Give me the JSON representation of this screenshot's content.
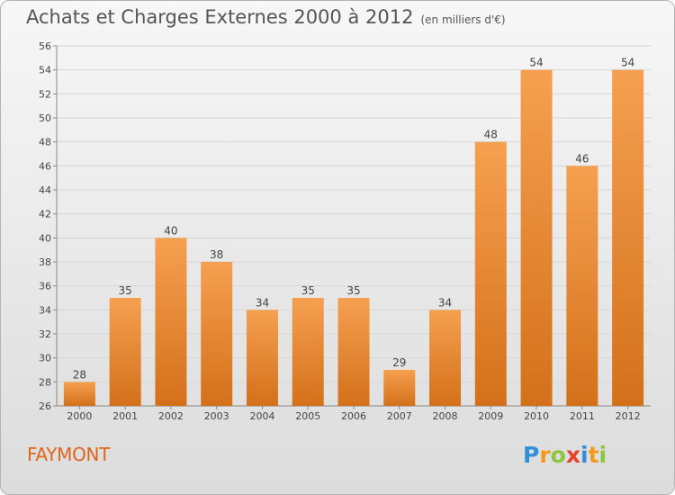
{
  "header": {
    "title": "Achats et Charges Externes 2000 à 2012",
    "subtitle": "(en milliers d'€)"
  },
  "commune": "FAYMONT",
  "logo": {
    "letters": [
      {
        "char": "P",
        "color": "#2f8fd8"
      },
      {
        "char": "r",
        "color": "#f39a1e"
      },
      {
        "char": "o",
        "color": "#8cc63f"
      },
      {
        "char": "x",
        "color": "#e8412c"
      },
      {
        "char": "i",
        "color": "#2f8fd8"
      },
      {
        "char": "t",
        "color": "#f39a1e"
      },
      {
        "char": "i",
        "color": "#8cc63f"
      }
    ]
  },
  "chart_data": {
    "type": "bar",
    "categories": [
      "2000",
      "2001",
      "2002",
      "2003",
      "2004",
      "2005",
      "2006",
      "2007",
      "2008",
      "2009",
      "2010",
      "2011",
      "2012"
    ],
    "values": [
      28,
      35,
      40,
      38,
      34,
      35,
      35,
      29,
      34,
      48,
      54,
      46,
      54
    ],
    "ylim": [
      26,
      56
    ],
    "yticks": [
      26,
      28,
      30,
      32,
      34,
      36,
      38,
      40,
      42,
      44,
      46,
      48,
      50,
      52,
      54,
      56
    ],
    "grid": true,
    "bar_color_top": "#f5a050",
    "bar_color_bottom": "#d4701a"
  }
}
